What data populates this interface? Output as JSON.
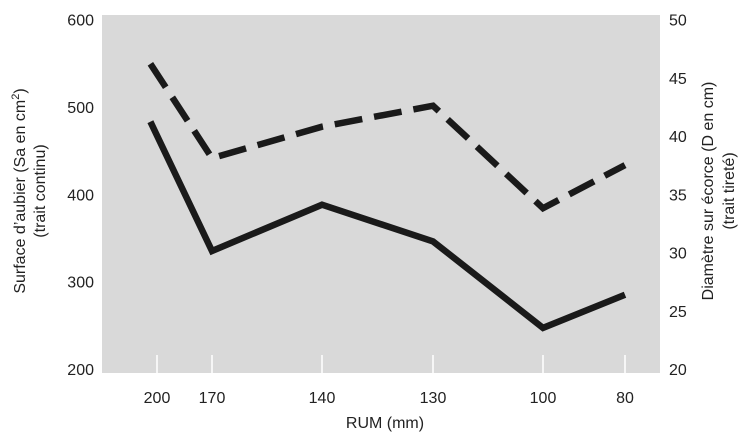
{
  "chart_data": {
    "type": "line",
    "title": "",
    "xlabel": "RUM (mm)",
    "categories": [
      "200",
      "170",
      "140",
      "130",
      "100",
      "80"
    ],
    "ylabel_left": {
      "line1_prefix": "Surface d’aubier (Sa en cm",
      "line1_sup": "2",
      "line1_suffix": ")",
      "line2": "(trait continu)"
    },
    "ylabel_right": {
      "line1": "Diamètre sur écorce (D en cm)",
      "line2": "(trait tireté)"
    },
    "y_left": {
      "lim": [
        200,
        600
      ],
      "ticks": [
        "200",
        "300",
        "400",
        "500",
        "600"
      ]
    },
    "y_right": {
      "lim": [
        20,
        50
      ],
      "ticks": [
        "20",
        "25",
        "30",
        "35",
        "40",
        "45",
        "50"
      ]
    },
    "grid": false,
    "background_color": "#d9d9d9",
    "series": [
      {
        "axis": "left",
        "style": "solid",
        "color": "#1a1a1a",
        "x": [
          -0.12,
          1.0,
          2.0,
          3.0,
          4.0,
          5.0
        ],
        "values": [
          483,
          335,
          388,
          346,
          247,
          285
        ]
      },
      {
        "axis": "right",
        "style": "dashed",
        "color": "#1a1a1a",
        "x": [
          -0.12,
          1.0,
          2.0,
          3.0,
          4.0,
          5.0
        ],
        "values": [
          46.2,
          38.1,
          40.8,
          42.6,
          33.8,
          37.5
        ]
      }
    ]
  }
}
